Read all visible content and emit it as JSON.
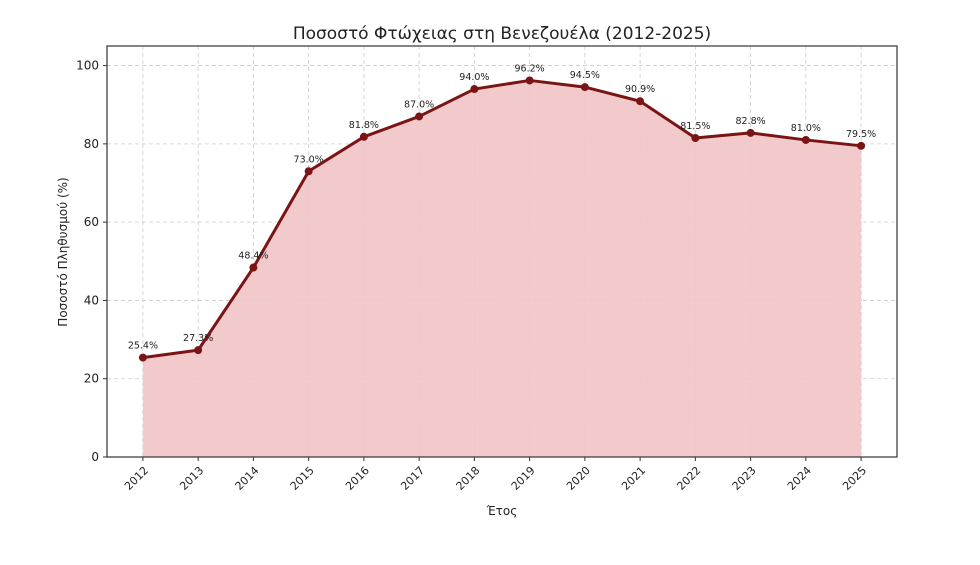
{
  "chart_data": {
    "type": "area",
    "title": "Ποσοστό Φτώχειας στη Βενεζουέλα (2012-2025)",
    "xlabel": "Έτος",
    "ylabel": "Ποσοστό Πληθυσμού (%)",
    "x": [
      2012,
      2013,
      2014,
      2015,
      2016,
      2017,
      2018,
      2019,
      2020,
      2021,
      2022,
      2023,
      2024,
      2025
    ],
    "values": [
      25.4,
      27.3,
      48.4,
      73.0,
      81.8,
      87.0,
      94.0,
      96.2,
      94.5,
      90.9,
      81.5,
      82.8,
      81.0,
      79.5
    ],
    "data_labels": [
      "25.4%",
      "27.3%",
      "48.4%",
      "73.0%",
      "81.8%",
      "87.0%",
      "94.0%",
      "96.2%",
      "94.5%",
      "90.9%",
      "81.5%",
      "82.8%",
      "81.0%",
      "79.5%"
    ],
    "x_tick_labels": [
      "2012",
      "2013",
      "2014",
      "2015",
      "2016",
      "2017",
      "2018",
      "2019",
      "2020",
      "2021",
      "2022",
      "2023",
      "2024",
      "2025"
    ],
    "y_ticks": [
      0,
      20,
      40,
      60,
      80,
      100
    ],
    "y_tick_labels": [
      "0",
      "20",
      "40",
      "60",
      "80",
      "100"
    ],
    "ylim": [
      0,
      105
    ],
    "xlim": [
      2011.35,
      2025.65
    ],
    "grid": true,
    "line_color": "#7b1515",
    "fill_color": "#f2c4c6"
  }
}
